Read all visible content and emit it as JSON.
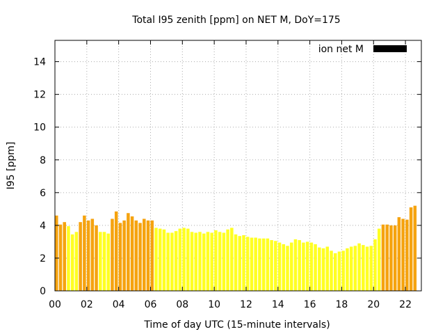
{
  "chart_data": {
    "type": "bar",
    "title": "Total I95 zenith [ppm] on NET M, DoY=175",
    "xlabel": "Time of day UTC (15-minute intervals)",
    "ylabel": "I95 [ppm]",
    "xlim": [
      0,
      23
    ],
    "ylim": [
      0,
      15.3
    ],
    "x_ticks": [
      "00",
      "02",
      "04",
      "06",
      "08",
      "10",
      "12",
      "14",
      "16",
      "18",
      "20",
      "22"
    ],
    "y_ticks": [
      "0",
      "2",
      "4",
      "6",
      "8",
      "10",
      "12",
      "14"
    ],
    "grid": true,
    "legend": {
      "position": "top-right",
      "entries": [
        {
          "label": "ion net M",
          "color": "#000000"
        }
      ]
    },
    "colors": {
      "low": "#ffff22",
      "high": "#f5a30f"
    },
    "threshold": 4.0,
    "interval_hours": 0.25,
    "values": [
      4.6,
      4.05,
      4.2,
      3.95,
      3.45,
      3.6,
      4.2,
      4.6,
      4.3,
      4.4,
      4.0,
      3.6,
      3.6,
      3.5,
      4.4,
      4.85,
      4.15,
      4.3,
      4.75,
      4.55,
      4.3,
      4.15,
      4.4,
      4.3,
      4.3,
      3.85,
      3.8,
      3.75,
      3.55,
      3.55,
      3.65,
      3.8,
      3.85,
      3.8,
      3.6,
      3.55,
      3.6,
      3.5,
      3.6,
      3.55,
      3.7,
      3.6,
      3.55,
      3.75,
      3.85,
      3.45,
      3.35,
      3.4,
      3.3,
      3.25,
      3.25,
      3.2,
      3.2,
      3.2,
      3.1,
      3.05,
      2.95,
      2.85,
      2.75,
      2.95,
      3.15,
      3.1,
      2.95,
      3.0,
      2.95,
      2.85,
      2.65,
      2.6,
      2.7,
      2.45,
      2.3,
      2.4,
      2.45,
      2.6,
      2.7,
      2.75,
      2.9,
      2.8,
      2.7,
      2.75,
      3.15,
      3.8,
      4.05,
      4.05,
      4.0,
      4.0,
      4.5,
      4.4,
      4.35,
      5.1,
      5.2
    ]
  }
}
